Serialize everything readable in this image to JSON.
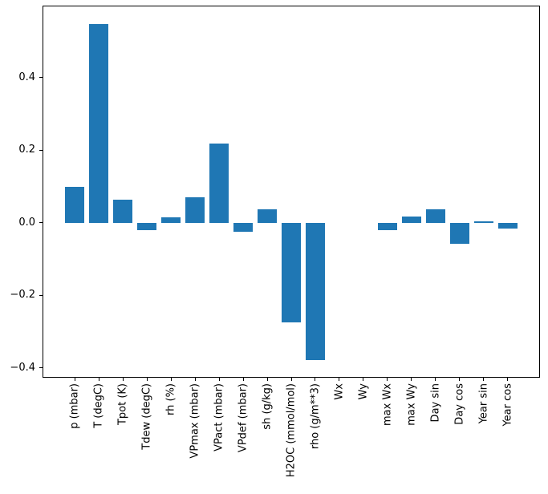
{
  "figure": {
    "background_color": "#ffffff",
    "text_color": "#000000"
  },
  "chart_data": {
    "type": "bar",
    "title": "",
    "xlabel": "",
    "ylabel": "",
    "bar_color": "#1f77b4",
    "grid": false,
    "categories": [
      "p (mbar)",
      "T (degC)",
      "Tpot (K)",
      "Tdew (degC)",
      "rh (%)",
      "VPmax (mbar)",
      "VPact (mbar)",
      "VPdef (mbar)",
      "sh (g/kg)",
      "H2OC (mmol/mol)",
      "rho (g/m**3)",
      "Wx",
      "Wy",
      "max Wx",
      "max Wy",
      "Day sin",
      "Day cos",
      "Year sin",
      "Year cos"
    ],
    "values": [
      0.099,
      0.547,
      0.063,
      -0.02,
      0.014,
      0.069,
      0.219,
      -0.025,
      0.037,
      -0.274,
      -0.379,
      0.0,
      0.0,
      -0.02,
      0.016,
      0.036,
      -0.058,
      0.003,
      -0.017
    ],
    "ylim": [
      -0.427,
      0.598
    ],
    "xlim": [
      -1.34,
      19.34
    ],
    "bar_width_units": 0.8,
    "yticks": [
      {
        "value": 0.4,
        "label": "0.4"
      },
      {
        "value": 0.2,
        "label": "0.2"
      },
      {
        "value": 0.0,
        "label": "0.0"
      },
      {
        "value": -0.2,
        "label": "−0.2"
      },
      {
        "value": -0.4,
        "label": "−0.4"
      }
    ],
    "xtick_rotation_deg": 90,
    "legend": ""
  }
}
